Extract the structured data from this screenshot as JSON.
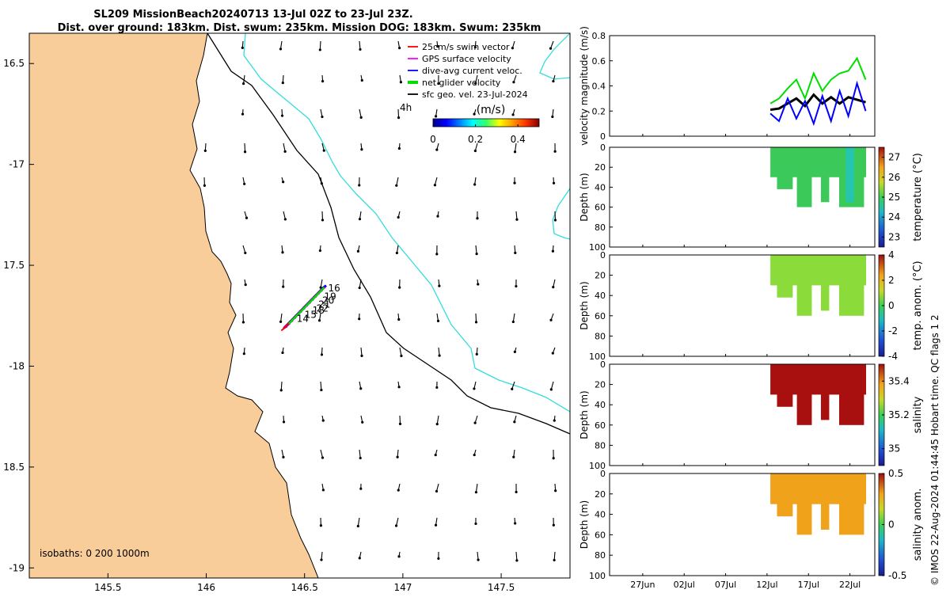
{
  "title": {
    "line1": "SL209 MissionBeach20240713 13-Jul 02Z to 23-Jul 23Z.",
    "line2": "Dist. over ground: 183km. Dist. swum: 235km. Mission DOG: 183km. Swum: 235km"
  },
  "map": {
    "lon_ticks": [
      "145.5",
      "146",
      "146.5",
      "147",
      "147.5"
    ],
    "lat_ticks": [
      "16.5",
      "-17",
      "17.5",
      "-18",
      "18.5",
      "-19"
    ],
    "lon_range": [
      145.1,
      147.85
    ],
    "lat_range": [
      -16.35,
      -19.05
    ],
    "isobath_label": "isobaths: 0   200  1000m",
    "legend": [
      {
        "label": "25cm/s swim vector",
        "color": "#ff0000"
      },
      {
        "label": "GPS surface velocity",
        "color": "#ff00ff"
      },
      {
        "label": "dive-avg current veloc.",
        "color": "#0000ff"
      },
      {
        "label": "net glider velocity",
        "color": "#00dd00"
      },
      {
        "label": "sfc geo. vel. 23-Jul-2024",
        "color": "#000000"
      }
    ],
    "time_label": "4h",
    "colorbar": {
      "unit": "(m/s)",
      "ticks": [
        "0",
        "0.2",
        "0.4"
      ],
      "range": [
        0,
        0.5
      ]
    },
    "day_labels": [
      {
        "text": "16",
        "lon": 146.62,
        "lat": -17.63
      },
      {
        "text": "19",
        "lon": 146.6,
        "lat": -17.67
      },
      {
        "text": "20",
        "lon": 146.59,
        "lat": -17.69
      },
      {
        "text": "21",
        "lon": 146.57,
        "lat": -17.71
      },
      {
        "text": "22",
        "lon": 146.56,
        "lat": -17.73
      },
      {
        "text": "18",
        "lon": 146.54,
        "lat": -17.74
      },
      {
        "text": "15",
        "lon": 146.5,
        "lat": -17.76
      },
      {
        "text": "14",
        "lon": 146.46,
        "lat": -17.78
      }
    ],
    "colors": {
      "land": "#f9cd9a",
      "iso200": "#000000",
      "iso1000": "#33dddd"
    }
  },
  "chart_data": [
    {
      "type": "line",
      "title": "",
      "ylabel": "velocity magnitude (m/s)",
      "ylim": [
        0,
        0.8
      ],
      "yticks": [
        "0",
        "0.2",
        "0.4",
        "0.6",
        "0.8"
      ],
      "x": [
        "12.4",
        "13",
        "14",
        "15",
        "16",
        "17",
        "18",
        "19",
        "20",
        "21",
        "22",
        "23"
      ],
      "series": [
        {
          "color": "#000000",
          "values": [
            0.21,
            0.22,
            0.26,
            0.3,
            0.24,
            0.33,
            0.26,
            0.31,
            0.26,
            0.31,
            0.29,
            0.27
          ]
        },
        {
          "color": "#0000ff",
          "values": [
            0.18,
            0.12,
            0.3,
            0.14,
            0.28,
            0.1,
            0.32,
            0.12,
            0.36,
            0.16,
            0.42,
            0.2
          ]
        },
        {
          "color": "#00dd00",
          "values": [
            0.26,
            0.3,
            0.38,
            0.45,
            0.3,
            0.5,
            0.36,
            0.45,
            0.5,
            0.52,
            0.62,
            0.45
          ]
        }
      ]
    },
    {
      "type": "heatmap",
      "ylabel": "Depth (m)",
      "ylim": [
        0,
        100
      ],
      "yticks": [
        "0",
        "20",
        "40",
        "60",
        "80",
        "100"
      ],
      "colorbar_label": "temperature (°C)",
      "colorbar_ticks": [
        "27",
        "26",
        "25",
        "24",
        "23"
      ],
      "colorbar_range": [
        22.5,
        27.5
      ]
    },
    {
      "type": "heatmap",
      "ylabel": "Depth (m)",
      "ylim": [
        0,
        100
      ],
      "yticks": [
        "0",
        "20",
        "40",
        "60",
        "80",
        "100"
      ],
      "colorbar_label": "temp. anom. (°C)",
      "colorbar_ticks": [
        "4",
        "2",
        "0",
        "-2",
        "-4"
      ],
      "colorbar_range": [
        -4,
        4
      ]
    },
    {
      "type": "heatmap",
      "ylabel": "Depth (m)",
      "ylim": [
        0,
        100
      ],
      "yticks": [
        "0",
        "20",
        "40",
        "60",
        "80",
        "100"
      ],
      "colorbar_label": "salinity",
      "colorbar_ticks": [
        "35.4",
        "35.2",
        "35"
      ],
      "colorbar_range": [
        34.9,
        35.5
      ]
    },
    {
      "type": "heatmap",
      "ylabel": "Depth (m)",
      "ylim": [
        0,
        100
      ],
      "yticks": [
        "0",
        "20",
        "40",
        "60",
        "80",
        "100"
      ],
      "colorbar_label": "salinity anom.",
      "colorbar_ticks": [
        "0.5",
        "0",
        "-0.5"
      ],
      "colorbar_range": [
        -0.5,
        0.5
      ]
    }
  ],
  "time_axis": {
    "ticks": [
      "27Jun",
      "02Jul",
      "07Jul",
      "12Jul",
      "17Jul",
      "22Jul"
    ]
  },
  "footer": "© IMOS 22-Aug-2024 01:44:45 Hobart time. QC flags 1  2"
}
